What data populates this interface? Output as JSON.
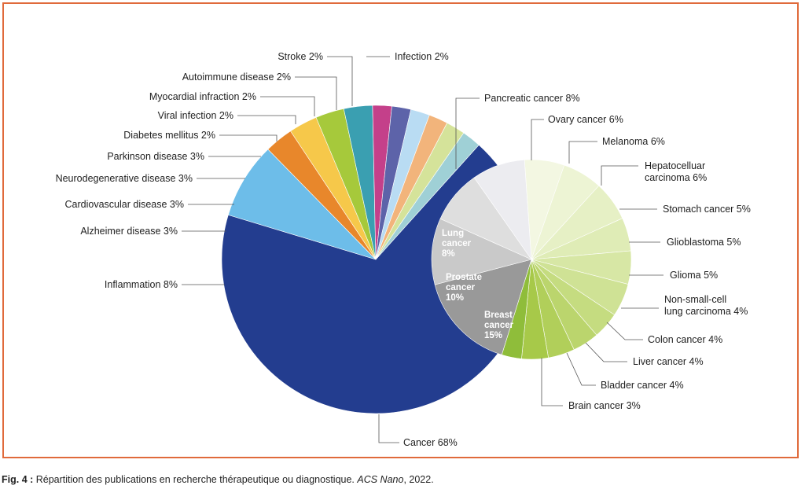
{
  "chart_data": [
    {
      "type": "pie",
      "name": "main",
      "slices": [
        {
          "label": "Cancer 68%",
          "value": 68,
          "color": "#233d8f"
        },
        {
          "label": "Inflammation 8%",
          "value": 8,
          "color": "#6dbde9"
        },
        {
          "label": "Alzheimer disease 3%",
          "value": 3,
          "color": "#e8872b"
        },
        {
          "label": "Cardiovascular disease 3%",
          "value": 3,
          "color": "#f6c84a"
        },
        {
          "label": "Neurodegenerative disease 3%",
          "value": 3,
          "color": "#a6c93b"
        },
        {
          "label": "Parkinson disease 3%",
          "value": 3,
          "color": "#3a9fb1"
        },
        {
          "label": "Diabetes mellitus 2%",
          "value": 2,
          "color": "#c4408a"
        },
        {
          "label": "Viral infection 2%",
          "value": 2,
          "color": "#5d63a9"
        },
        {
          "label": "Myocardial infraction 2%",
          "value": 2,
          "color": "#b9dcf3"
        },
        {
          "label": "Autoimmune disease 2%",
          "value": 2,
          "color": "#f2b47b"
        },
        {
          "label": "Stroke 2%",
          "value": 2,
          "color": "#d5e39a"
        },
        {
          "label": "Infection 2%",
          "value": 2,
          "color": "#9fd0d6"
        }
      ]
    },
    {
      "type": "pie",
      "name": "cancer-breakdown",
      "slices": [
        {
          "label": "Ovary cancer 6%",
          "value": 6,
          "color": "#f3f7e2"
        },
        {
          "label": "Melanoma 6%",
          "value": 6,
          "color": "#edf4d4"
        },
        {
          "label": "Hepatocelluar carcinoma 6%",
          "value": 6,
          "color": "#e6f0c5"
        },
        {
          "label": "Stomach cancer 5%",
          "value": 5,
          "color": "#dfecb6"
        },
        {
          "label": "Glioblastoma 5%",
          "value": 5,
          "color": "#d7e7a5"
        },
        {
          "label": "Glioma 5%",
          "value": 5,
          "color": "#cfe295"
        },
        {
          "label": "Non-small-cell lung carcinoma 4%",
          "value": 4,
          "color": "#c5dc80"
        },
        {
          "label": "Colon cancer 4%",
          "value": 4,
          "color": "#bbd56d"
        },
        {
          "label": "Liver cancer 4%",
          "value": 4,
          "color": "#b1cf5a"
        },
        {
          "label": "Bladder cancer 4%",
          "value": 4,
          "color": "#a7c949"
        },
        {
          "label": "Brain cancer 3%",
          "value": 3,
          "color": "#8fbd3a"
        },
        {
          "label": "Breast cancer 15%",
          "value": 15,
          "color": "#999999"
        },
        {
          "label": "Prostate cancer 10%",
          "value": 10,
          "color": "#c9c9c9"
        },
        {
          "label": "Lung cancer 8%",
          "value": 8,
          "color": "#dedede"
        },
        {
          "label": "Pancreatic cancer 8%",
          "value": 8,
          "color": "#ececf0"
        }
      ]
    }
  ],
  "caption": {
    "figref": "Fig. 4 :",
    "text": " Répartition des publications en recherche thérapeutique ou diagnostique. ",
    "journal": "ACS Nano",
    "year": ", 2022."
  }
}
